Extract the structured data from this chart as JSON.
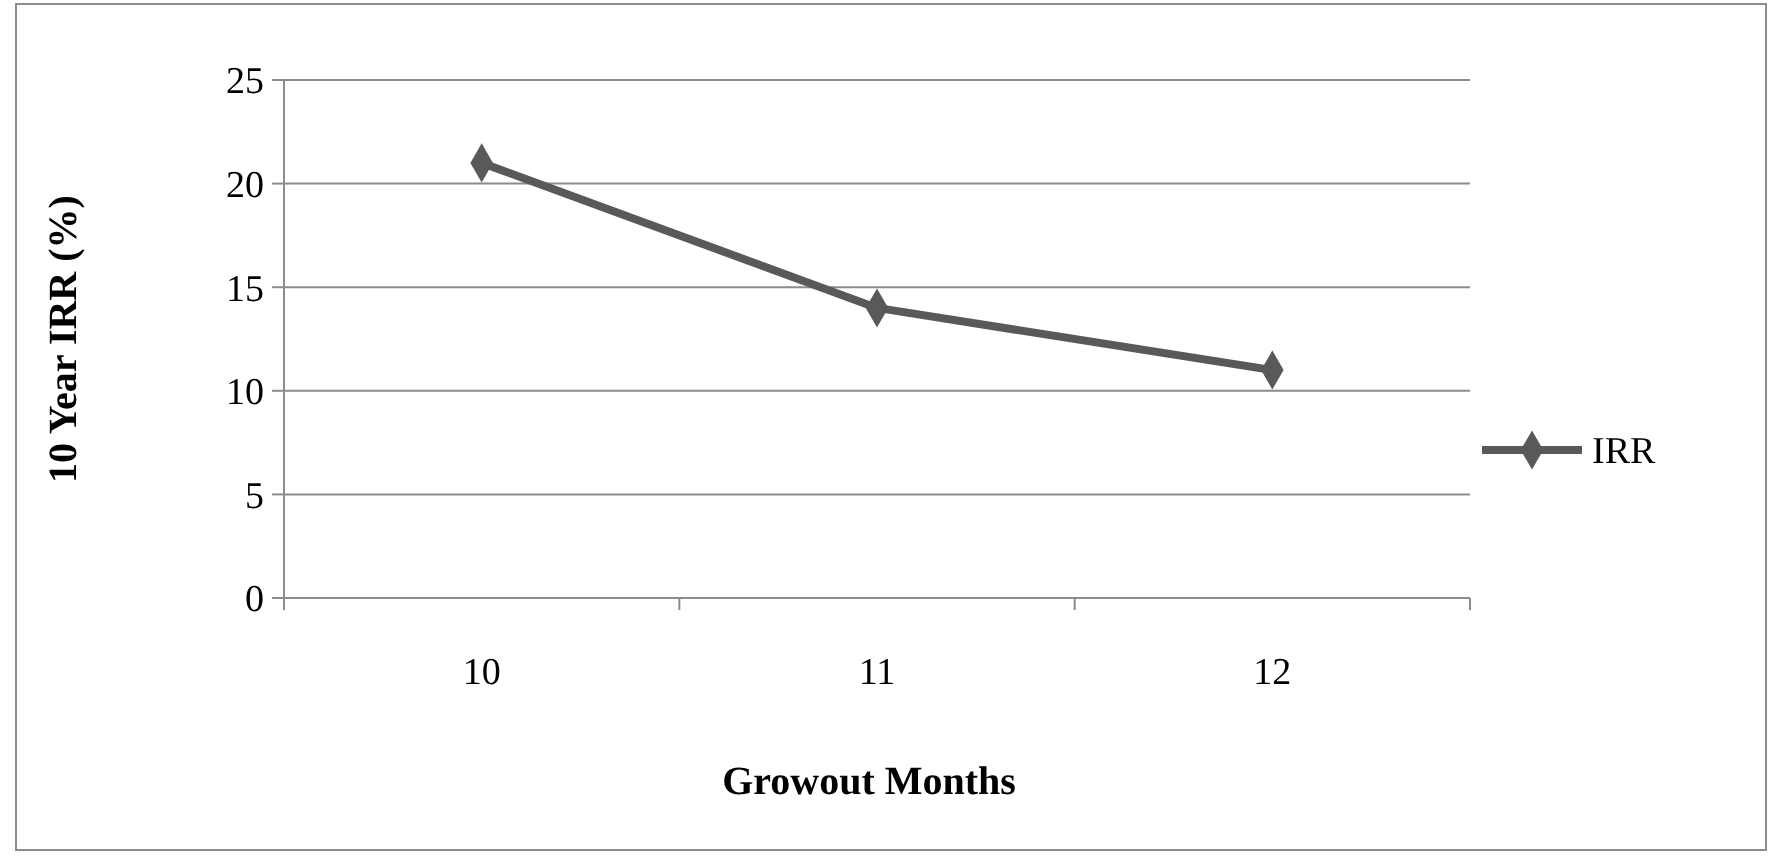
{
  "chart_data": {
    "type": "line",
    "xlabel": "Growout Months",
    "ylabel": "10 Year IRR (%)",
    "categories": [
      "10",
      "11",
      "12"
    ],
    "series": [
      {
        "name": "IRR",
        "color": "#595959",
        "values": [
          21,
          14,
          11
        ]
      }
    ],
    "ylim": [
      0,
      25
    ],
    "yticks": [
      0,
      5,
      10,
      15,
      20,
      25
    ],
    "grid": "y",
    "legend": "right",
    "marker": "diamond",
    "line_style": "solid"
  }
}
